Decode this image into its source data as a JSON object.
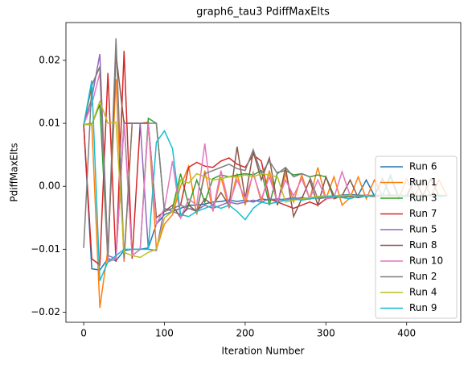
{
  "chart_data": {
    "type": "line",
    "title": "graph6_tau3 PdiffMaxElts",
    "xlabel": "Iteration Number",
    "ylabel": "PdiffMaxElts",
    "x": [
      0,
      10,
      20,
      30,
      40,
      50,
      60,
      70,
      80,
      90,
      100,
      110,
      120,
      130,
      140,
      150,
      160,
      170,
      180,
      190,
      200,
      210,
      220,
      230,
      240,
      250,
      260,
      270,
      280,
      290,
      300,
      310,
      320,
      330,
      340,
      350,
      360,
      370,
      380,
      390,
      400,
      410,
      420,
      430,
      440,
      450
    ],
    "xlim": [
      -22,
      467
    ],
    "xticks": [
      0,
      100,
      200,
      300,
      400
    ],
    "ylim": [
      -0.0216,
      0.026
    ],
    "yticks": [
      {
        "value": -0.02,
        "label": "−0.02"
      },
      {
        "value": -0.01,
        "label": "−0.01"
      },
      {
        "value": 0,
        "label": "0.00"
      },
      0.01,
      0.02
    ],
    "legend": "lower right",
    "series": [
      {
        "name": "Run 6",
        "color": "#1f77b4",
        "values": [
          0.0098,
          -0.0131,
          -0.0133,
          -0.0115,
          -0.0118,
          -0.0102,
          -0.01,
          -0.01,
          -0.0098,
          -0.006,
          -0.0045,
          -0.004,
          -0.0035,
          -0.003,
          -0.003,
          -0.0028,
          -0.0025,
          -0.0024,
          -0.0022,
          -0.0024,
          -0.0022,
          -0.0025,
          -0.002,
          -0.0022,
          -0.002,
          -0.0022,
          -0.002,
          -0.0018,
          -0.002,
          -0.0018,
          -0.0017,
          -0.0016,
          -0.0014,
          -0.0013,
          -0.0014,
          0.001,
          -0.0015,
          -0.0014,
          -0.0016,
          -0.0015,
          -0.0014,
          -0.0016,
          -0.0015,
          -0.0015,
          -0.0016,
          -0.0015
        ]
      },
      {
        "name": "Run 1",
        "color": "#ff7f0e",
        "values": [
          0.0098,
          0.01,
          -0.0193,
          -0.01,
          0.017,
          -0.012,
          0.01,
          0.01,
          0.0102,
          -0.01,
          -0.006,
          -0.0045,
          0.0,
          0.0032,
          -0.0045,
          0.0025,
          -0.004,
          0.0015,
          -0.0035,
          0.002,
          -0.003,
          0.0022,
          -0.0025,
          0.0025,
          -0.003,
          0.002,
          -0.0025,
          0.0018,
          -0.002,
          0.003,
          -0.002,
          0.0015,
          -0.003,
          -0.0018,
          0.0015,
          -0.002,
          0.001,
          -0.0015,
          0.0015,
          -0.002,
          0.0012,
          -0.0015,
          0.001,
          -0.0015,
          0.001,
          -0.0015
        ]
      },
      {
        "name": "Run 3",
        "color": "#2ca02c",
        "values": [
          0.0098,
          0.0098,
          0.013,
          -0.012,
          -0.0115,
          0.0105,
          -0.011,
          -0.01,
          0.0108,
          0.01,
          -0.004,
          -0.0035,
          0.002,
          -0.003,
          0.001,
          -0.0025,
          0.0012,
          0.0018,
          0.0015,
          0.0018,
          0.002,
          0.0018,
          0.0025,
          -0.003,
          0.0022,
          0.0025,
          0.0018,
          0.002,
          0.0015,
          0.0018,
          0.0015,
          -0.0015,
          -0.0018,
          -0.0016,
          -0.0015,
          -0.0014,
          -0.0016,
          -0.0015,
          -0.0014,
          -0.0016,
          -0.0015,
          -0.0016,
          -0.0015,
          -0.0014,
          -0.0016,
          -0.0015
        ]
      },
      {
        "name": "Run 7",
        "color": "#d62728",
        "values": [
          0.0098,
          -0.0115,
          -0.0125,
          0.018,
          -0.012,
          0.0215,
          -0.0115,
          0.01,
          0.01,
          -0.005,
          -0.004,
          -0.0035,
          -0.003,
          0.003,
          0.0038,
          0.0032,
          0.003,
          0.004,
          0.0045,
          0.0035,
          0.003,
          0.005,
          0.004,
          -0.002,
          -0.0025,
          -0.003,
          -0.0035,
          -0.003,
          -0.0025,
          -0.003,
          -0.002,
          -0.0018,
          -0.0015,
          -0.0016,
          -0.0018,
          -0.0015,
          -0.0016,
          -0.0015,
          -0.0014,
          -0.0016,
          -0.0015,
          -0.0016,
          -0.0015,
          -0.0014,
          -0.0016,
          -0.0015
        ]
      },
      {
        "name": "Run 5",
        "color": "#9467bd",
        "values": [
          0.0098,
          0.014,
          0.021,
          -0.011,
          -0.0115,
          0.01,
          0.01,
          0.01,
          -0.01,
          -0.0102,
          -0.0035,
          -0.004,
          -0.0045,
          -0.0035,
          -0.0038,
          -0.003,
          -0.0035,
          -0.003,
          -0.0025,
          -0.0028,
          -0.0025,
          -0.0022,
          -0.0025,
          -0.002,
          -0.0022,
          -0.002,
          -0.0018,
          -0.002,
          -0.0018,
          -0.0017,
          -0.0016,
          -0.0015,
          -0.0016,
          -0.0015,
          -0.0014,
          -0.0016,
          -0.0015,
          -0.0014,
          -0.0015,
          -0.0016,
          -0.0015,
          0.0012,
          -0.0015,
          -0.0014,
          -0.0016,
          -0.0015
        ]
      },
      {
        "name": "Run 8",
        "color": "#8c564b",
        "values": [
          0.0098,
          0.016,
          0.019,
          -0.0115,
          0.021,
          0.01,
          0.01,
          0.01,
          0.01,
          -0.005,
          -0.004,
          -0.003,
          -0.005,
          -0.003,
          -0.004,
          -0.002,
          -0.003,
          -0.001,
          -0.003,
          0.0063,
          -0.002,
          0.0055,
          0.001,
          0.0045,
          -0.003,
          0.003,
          -0.0048,
          -0.002,
          0.001,
          -0.003,
          0.0015,
          -0.002,
          -0.0015,
          0.001,
          -0.0018,
          -0.0015,
          -0.0016,
          0.0012,
          -0.0015,
          -0.0014,
          -0.0016,
          0.001,
          -0.0015,
          0.0012,
          -0.0015,
          -0.0015
        ]
      },
      {
        "name": "Run 10",
        "color": "#e377c2",
        "values": [
          0.0098,
          0.013,
          0.018,
          -0.012,
          -0.0115,
          0.01,
          -0.011,
          -0.01,
          0.01,
          -0.006,
          -0.0035,
          0.004,
          -0.005,
          -0.002,
          -0.003,
          0.0068,
          -0.004,
          0.0025,
          -0.003,
          0.001,
          -0.002,
          0.002,
          -0.002,
          0.0015,
          -0.0025,
          0.001,
          -0.0015,
          0.0012,
          -0.002,
          0.001,
          -0.002,
          -0.0018,
          0.0023,
          -0.0015,
          -0.0016,
          -0.0014,
          -0.0015,
          -0.0016,
          -0.0015,
          -0.0014,
          -0.0015,
          -0.0016,
          -0.0015,
          -0.0014,
          -0.0015,
          -0.0015
        ]
      },
      {
        "name": "Run 2",
        "color": "#7f7f7f",
        "values": [
          -0.0098,
          0.016,
          0.019,
          -0.011,
          0.0235,
          -0.0115,
          0.01,
          0.01,
          0.01,
          0.01,
          -0.004,
          -0.0035,
          -0.003,
          -0.0035,
          -0.004,
          0.002,
          0.0025,
          0.003,
          0.0035,
          0.0028,
          0.0025,
          0.0058,
          0.002,
          0.004,
          0.002,
          0.003,
          0.0015,
          0.002,
          0.0015,
          -0.002,
          -0.0018,
          -0.0016,
          -0.0015,
          -0.0016,
          -0.0014,
          -0.0015,
          -0.0016,
          -0.0015,
          -0.0014,
          -0.0015,
          -0.0016,
          -0.0015,
          -0.0014,
          -0.0015,
          -0.0016,
          -0.0015
        ]
      },
      {
        "name": "Run 4",
        "color": "#bcbd22",
        "values": [
          0.0098,
          0.0098,
          0.0135,
          0.01,
          0.0102,
          -0.0105,
          -0.011,
          -0.0113,
          -0.0105,
          -0.01,
          -0.005,
          -0.004,
          0.001,
          0.0005,
          0.002,
          0.0015,
          0.001,
          0.0012,
          0.0015,
          0.0015,
          0.0018,
          0.0015,
          0.002,
          0.0018,
          0.0015,
          -0.0025,
          -0.0022,
          -0.002,
          -0.0018,
          -0.0016,
          -0.0015,
          -0.0016,
          -0.0015,
          -0.0014,
          -0.0016,
          -0.0015,
          -0.0014,
          -0.0015,
          -0.0016,
          -0.0015,
          -0.0014,
          -0.0015,
          -0.0016,
          -0.0015,
          -0.0014,
          -0.0015
        ]
      },
      {
        "name": "Run 9",
        "color": "#17becf",
        "values": [
          0.0098,
          0.0168,
          -0.015,
          -0.012,
          -0.011,
          -0.01,
          -0.01,
          -0.01,
          -0.01,
          0.007,
          0.0088,
          0.006,
          -0.0045,
          -0.0048,
          -0.004,
          -0.0035,
          -0.003,
          -0.0035,
          -0.003,
          -0.004,
          -0.0053,
          -0.0035,
          -0.0025,
          -0.0028,
          -0.0025,
          -0.0022,
          -0.002,
          -0.0022,
          -0.002,
          -0.0018,
          -0.0017,
          -0.0016,
          -0.0018,
          -0.002,
          -0.0015,
          -0.0016,
          -0.0014,
          -0.0015,
          0.0018,
          -0.0016,
          -0.0015,
          -0.0016,
          -0.0015,
          -0.0014,
          -0.0015,
          -0.0015
        ]
      }
    ]
  }
}
